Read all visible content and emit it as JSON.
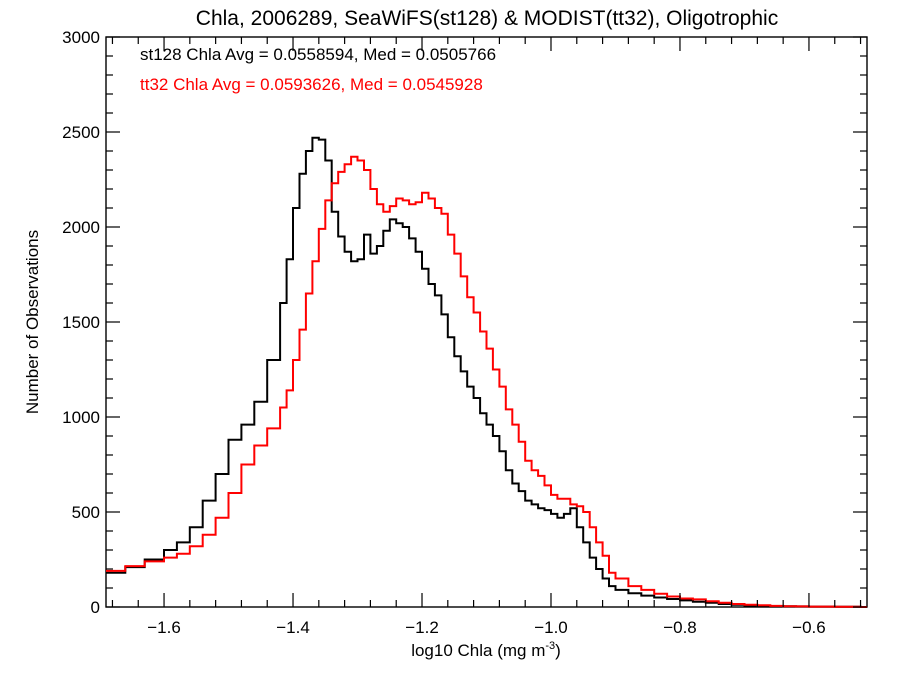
{
  "chart_data": {
    "type": "line",
    "step": true,
    "title": "Chla, 2006289, SeaWiFS(st128) & MODIST(tt32), Oligotrophic",
    "xlabel": "log10 Chla (mg m",
    "xlabel_sup": "-3",
    "xlabel_end": ")",
    "ylabel": "Number of Observations",
    "xlim": [
      -1.69,
      -0.51
    ],
    "ylim": [
      0,
      3000
    ],
    "x_ticks": [
      -1.6,
      -1.4,
      -1.2,
      -1.0,
      -0.8,
      -0.6
    ],
    "y_ticks": [
      0,
      500,
      1000,
      1500,
      2000,
      2500,
      3000
    ],
    "grid": false,
    "annotations": [
      {
        "text": "st128 Chla Avg = 0.0558594, Med = 0.0505766",
        "color": "#000000"
      },
      {
        "text": "tt32 Chla Avg = 0.0593626, Med = 0.0545928",
        "color": "#ff0000"
      }
    ],
    "series": [
      {
        "color": "#000000",
        "x": [
          -1.69,
          -1.66,
          -1.63,
          -1.6,
          -1.58,
          -1.56,
          -1.54,
          -1.52,
          -1.5,
          -1.48,
          -1.46,
          -1.44,
          -1.42,
          -1.41,
          -1.4,
          -1.39,
          -1.38,
          -1.37,
          -1.36,
          -1.35,
          -1.34,
          -1.33,
          -1.32,
          -1.31,
          -1.3,
          -1.29,
          -1.28,
          -1.27,
          -1.26,
          -1.25,
          -1.24,
          -1.23,
          -1.22,
          -1.21,
          -1.2,
          -1.19,
          -1.18,
          -1.17,
          -1.16,
          -1.15,
          -1.14,
          -1.13,
          -1.12,
          -1.11,
          -1.1,
          -1.09,
          -1.08,
          -1.07,
          -1.06,
          -1.05,
          -1.04,
          -1.03,
          -1.02,
          -1.01,
          -1.0,
          -0.99,
          -0.98,
          -0.97,
          -0.96,
          -0.95,
          -0.94,
          -0.93,
          -0.92,
          -0.91,
          -0.9,
          -0.88,
          -0.86,
          -0.84,
          -0.82,
          -0.8,
          -0.78,
          -0.76,
          -0.74,
          -0.72,
          -0.7,
          -0.68,
          -0.66,
          -0.64,
          -0.62,
          -0.6,
          -0.58,
          -0.56,
          -0.54,
          -0.52
        ],
        "y": [
          180,
          210,
          250,
          300,
          340,
          420,
          560,
          700,
          880,
          960,
          1080,
          1300,
          1600,
          1830,
          2100,
          2280,
          2400,
          2470,
          2460,
          2350,
          2080,
          1950,
          1870,
          1820,
          1830,
          1960,
          1860,
          1900,
          1980,
          2040,
          2020,
          2000,
          1940,
          1870,
          1780,
          1700,
          1640,
          1540,
          1420,
          1320,
          1240,
          1160,
          1100,
          1020,
          960,
          900,
          820,
          720,
          650,
          610,
          560,
          540,
          520,
          510,
          490,
          470,
          490,
          520,
          420,
          340,
          260,
          200,
          150,
          110,
          90,
          72,
          60,
          50,
          42,
          35,
          28,
          22,
          16,
          12,
          8,
          6,
          5,
          4,
          3,
          2,
          2,
          1,
          1,
          0
        ]
      },
      {
        "color": "#ff0000",
        "x": [
          -1.69,
          -1.66,
          -1.63,
          -1.6,
          -1.58,
          -1.56,
          -1.54,
          -1.52,
          -1.5,
          -1.48,
          -1.46,
          -1.44,
          -1.42,
          -1.41,
          -1.4,
          -1.39,
          -1.38,
          -1.37,
          -1.36,
          -1.35,
          -1.34,
          -1.33,
          -1.32,
          -1.31,
          -1.3,
          -1.29,
          -1.28,
          -1.27,
          -1.26,
          -1.25,
          -1.24,
          -1.23,
          -1.22,
          -1.21,
          -1.2,
          -1.19,
          -1.18,
          -1.17,
          -1.16,
          -1.15,
          -1.14,
          -1.13,
          -1.12,
          -1.11,
          -1.1,
          -1.09,
          -1.08,
          -1.07,
          -1.06,
          -1.05,
          -1.04,
          -1.03,
          -1.02,
          -1.01,
          -1.0,
          -0.99,
          -0.98,
          -0.97,
          -0.96,
          -0.95,
          -0.94,
          -0.93,
          -0.92,
          -0.91,
          -0.9,
          -0.88,
          -0.86,
          -0.84,
          -0.82,
          -0.8,
          -0.78,
          -0.76,
          -0.74,
          -0.72,
          -0.7,
          -0.68,
          -0.66,
          -0.64,
          -0.62,
          -0.6,
          -0.58,
          -0.56,
          -0.54,
          -0.52
        ],
        "y": [
          190,
          215,
          240,
          260,
          280,
          320,
          380,
          470,
          600,
          750,
          850,
          940,
          1050,
          1140,
          1300,
          1460,
          1650,
          1820,
          1990,
          2140,
          2230,
          2290,
          2330,
          2370,
          2350,
          2300,
          2200,
          2120,
          2080,
          2110,
          2150,
          2140,
          2120,
          2130,
          2180,
          2150,
          2100,
          2070,
          1960,
          1860,
          1740,
          1630,
          1550,
          1450,
          1360,
          1250,
          1160,
          1040,
          960,
          870,
          770,
          720,
          690,
          640,
          590,
          570,
          570,
          540,
          530,
          500,
          420,
          340,
          270,
          180,
          150,
          110,
          90,
          70,
          55,
          45,
          40,
          30,
          22,
          16,
          12,
          9,
          6,
          4,
          3,
          2,
          2,
          1,
          1,
          0
        ]
      }
    ]
  }
}
